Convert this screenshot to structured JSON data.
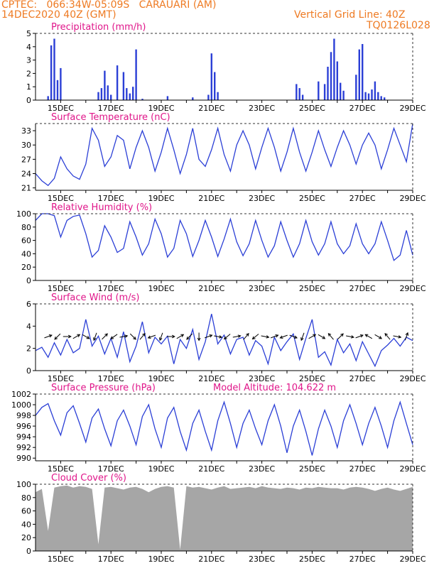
{
  "header": {
    "line1": "CPTEC:   066:34W-05:09S   CARAUARI (AM)",
    "line2": "14DEC2020 40Z (GMT)",
    "grid_note": "Vertical Grid Line: 40Z",
    "model_code": "TQ0126L028"
  },
  "colors": {
    "header": "#ee7a22",
    "panel_title": "#e0168a",
    "series": "#2b3fd6",
    "cloud": "#a6a6a6",
    "grid": "#333333"
  },
  "x_axis": {
    "start": "14DEC2020 00Z",
    "end": "29DEC2020 00Z",
    "tick_labels": [
      "15DEC",
      "17DEC",
      "19DEC",
      "21DEC",
      "23DEC",
      "25DEC",
      "27DEC",
      "29DEC"
    ]
  },
  "chart_data": [
    {
      "id": "precip",
      "type": "bar",
      "title": "Precipitation (mm/h)",
      "ylim": [
        0,
        5
      ],
      "yticks": [
        "0",
        "1",
        "2",
        "3",
        "4",
        "5"
      ],
      "x": [
        "14DEC 12Z",
        "14DEC 15Z",
        "14DEC 18Z",
        "14DEC 21Z",
        "15DEC 00Z",
        "16DEC 12Z",
        "16DEC 15Z",
        "16DEC 18Z",
        "16DEC 21Z",
        "17DEC 00Z",
        "17DEC 06Z",
        "17DEC 12Z",
        "17DEC 15Z",
        "17DEC 18Z",
        "17DEC 21Z",
        "18DEC 00Z",
        "18DEC 06Z",
        "19DEC 06Z",
        "20DEC 06Z",
        "20DEC 21Z",
        "21DEC 00Z",
        "21DEC 03Z",
        "21DEC 06Z",
        "24DEC 09Z",
        "24DEC 12Z",
        "24DEC 15Z",
        "25DEC 06Z",
        "25DEC 12Z",
        "25DEC 15Z",
        "25DEC 18Z",
        "25DEC 21Z",
        "26DEC 00Z",
        "26DEC 03Z",
        "26DEC 06Z",
        "26DEC 18Z",
        "26DEC 21Z",
        "27DEC 00Z",
        "27DEC 03Z",
        "27DEC 06Z",
        "27DEC 09Z",
        "27DEC 12Z",
        "27DEC 15Z",
        "27DEC 18Z",
        "27DEC 21Z"
      ],
      "values": [
        0.3,
        4.1,
        4.6,
        1.5,
        2.4,
        0.6,
        0.9,
        2.2,
        1.1,
        0.4,
        2.6,
        2.1,
        0.9,
        0.5,
        1.0,
        3.8,
        0.1,
        0.3,
        0.2,
        0.4,
        3.5,
        2.1,
        0.6,
        1.2,
        0.9,
        0.4,
        1.4,
        1.2,
        2.5,
        3.6,
        4.6,
        2.9,
        1.3,
        0.7,
        1.9,
        3.8,
        4.2,
        0.6,
        0.5,
        0.8,
        1.4,
        0.6,
        0.3,
        0.2
      ]
    },
    {
      "id": "temp",
      "type": "line",
      "title": "Surface Temperature (nC)",
      "ylim": [
        20.5,
        34.5
      ],
      "yticks": [
        "21",
        "24",
        "27",
        "30",
        "33"
      ],
      "x": [
        "14DEC 00Z",
        "14DEC 06Z",
        "14DEC 12Z",
        "14DEC 18Z",
        "15DEC 00Z",
        "15DEC 06Z",
        "15DEC 12Z",
        "15DEC 18Z",
        "16DEC 00Z",
        "16DEC 06Z",
        "16DEC 12Z",
        "16DEC 18Z",
        "17DEC 00Z",
        "17DEC 06Z",
        "17DEC 12Z",
        "17DEC 18Z",
        "18DEC 00Z",
        "18DEC 06Z",
        "18DEC 12Z",
        "18DEC 18Z",
        "19DEC 00Z",
        "19DEC 06Z",
        "19DEC 12Z",
        "19DEC 18Z",
        "20DEC 00Z",
        "20DEC 06Z",
        "20DEC 12Z",
        "20DEC 18Z",
        "21DEC 00Z",
        "21DEC 06Z",
        "21DEC 12Z",
        "21DEC 18Z",
        "22DEC 00Z",
        "22DEC 06Z",
        "22DEC 12Z",
        "22DEC 18Z",
        "23DEC 00Z",
        "23DEC 06Z",
        "23DEC 12Z",
        "23DEC 18Z",
        "24DEC 00Z",
        "24DEC 06Z",
        "24DEC 12Z",
        "24DEC 18Z",
        "25DEC 00Z",
        "25DEC 06Z",
        "25DEC 12Z",
        "25DEC 18Z",
        "26DEC 00Z",
        "26DEC 06Z",
        "26DEC 12Z",
        "26DEC 18Z",
        "27DEC 00Z",
        "27DEC 06Z",
        "27DEC 12Z",
        "27DEC 18Z",
        "28DEC 00Z",
        "28DEC 06Z",
        "28DEC 12Z",
        "28DEC 18Z",
        "29DEC 00Z"
      ],
      "values": [
        24.0,
        22.5,
        21.5,
        23.0,
        27.5,
        25.0,
        23.5,
        22.8,
        26.0,
        33.5,
        31.0,
        25.5,
        27.5,
        32.0,
        31.0,
        25.0,
        29.5,
        33.0,
        29.5,
        24.5,
        28.5,
        33.5,
        29.0,
        24.0,
        28.0,
        33.5,
        27.0,
        25.5,
        29.0,
        33.5,
        28.0,
        24.5,
        30.0,
        33.0,
        30.0,
        25.0,
        29.5,
        33.5,
        29.5,
        24.5,
        28.5,
        33.5,
        28.5,
        24.5,
        28.5,
        33.0,
        29.0,
        25.5,
        29.5,
        33.0,
        30.0,
        26.0,
        30.0,
        32.5,
        30.0,
        25.0,
        29.0,
        33.5,
        30.0,
        26.5,
        34.5
      ]
    },
    {
      "id": "rh",
      "type": "line",
      "title": "Relative Humidity (%)",
      "ylim": [
        0,
        100
      ],
      "yticks": [
        "0",
        "20",
        "40",
        "60",
        "80",
        "100"
      ],
      "x": [
        "14DEC 00Z",
        "14DEC 06Z",
        "14DEC 12Z",
        "14DEC 18Z",
        "15DEC 00Z",
        "15DEC 06Z",
        "15DEC 12Z",
        "15DEC 18Z",
        "16DEC 00Z",
        "16DEC 06Z",
        "16DEC 12Z",
        "16DEC 18Z",
        "17DEC 00Z",
        "17DEC 06Z",
        "17DEC 12Z",
        "17DEC 18Z",
        "18DEC 00Z",
        "18DEC 06Z",
        "18DEC 12Z",
        "18DEC 18Z",
        "19DEC 00Z",
        "19DEC 06Z",
        "19DEC 12Z",
        "19DEC 18Z",
        "20DEC 00Z",
        "20DEC 06Z",
        "20DEC 12Z",
        "20DEC 18Z",
        "21DEC 00Z",
        "21DEC 06Z",
        "21DEC 12Z",
        "21DEC 18Z",
        "22DEC 00Z",
        "22DEC 06Z",
        "22DEC 12Z",
        "22DEC 18Z",
        "23DEC 00Z",
        "23DEC 06Z",
        "23DEC 12Z",
        "23DEC 18Z",
        "24DEC 00Z",
        "24DEC 06Z",
        "24DEC 12Z",
        "24DEC 18Z",
        "25DEC 00Z",
        "25DEC 06Z",
        "25DEC 12Z",
        "25DEC 18Z",
        "26DEC 00Z",
        "26DEC 06Z",
        "26DEC 12Z",
        "26DEC 18Z",
        "27DEC 00Z",
        "27DEC 06Z",
        "27DEC 12Z",
        "27DEC 18Z",
        "28DEC 00Z",
        "28DEC 06Z",
        "28DEC 12Z",
        "28DEC 18Z",
        "29DEC 00Z"
      ],
      "values": [
        90,
        100,
        100,
        97,
        65,
        90,
        96,
        98,
        70,
        35,
        45,
        82,
        65,
        42,
        48,
        88,
        65,
        38,
        55,
        92,
        70,
        35,
        48,
        90,
        70,
        36,
        60,
        90,
        65,
        36,
        62,
        92,
        58,
        37,
        55,
        90,
        60,
        35,
        52,
        88,
        60,
        35,
        55,
        90,
        58,
        38,
        55,
        88,
        55,
        40,
        52,
        85,
        55,
        40,
        55,
        88,
        60,
        30,
        38,
        75,
        38
      ]
    },
    {
      "id": "wind",
      "type": "line",
      "title": "Surface Wind (m/s)",
      "ylim": [
        0,
        6
      ],
      "yticks": [
        "0",
        "2",
        "4",
        "6"
      ],
      "x": [
        "14DEC 00Z",
        "14DEC 06Z",
        "14DEC 12Z",
        "14DEC 18Z",
        "15DEC 00Z",
        "15DEC 06Z",
        "15DEC 12Z",
        "15DEC 18Z",
        "16DEC 00Z",
        "16DEC 06Z",
        "16DEC 12Z",
        "16DEC 18Z",
        "17DEC 00Z",
        "17DEC 06Z",
        "17DEC 12Z",
        "17DEC 18Z",
        "18DEC 00Z",
        "18DEC 06Z",
        "18DEC 12Z",
        "18DEC 18Z",
        "19DEC 00Z",
        "19DEC 06Z",
        "19DEC 12Z",
        "19DEC 18Z",
        "20DEC 00Z",
        "20DEC 06Z",
        "20DEC 12Z",
        "20DEC 18Z",
        "21DEC 00Z",
        "21DEC 06Z",
        "21DEC 12Z",
        "21DEC 18Z",
        "22DEC 00Z",
        "22DEC 06Z",
        "22DEC 12Z",
        "22DEC 18Z",
        "23DEC 00Z",
        "23DEC 06Z",
        "23DEC 12Z",
        "23DEC 18Z",
        "24DEC 00Z",
        "24DEC 06Z",
        "24DEC 12Z",
        "24DEC 18Z",
        "25DEC 00Z",
        "25DEC 06Z",
        "25DEC 12Z",
        "25DEC 18Z",
        "26DEC 00Z",
        "26DEC 06Z",
        "26DEC 12Z",
        "26DEC 18Z",
        "27DEC 00Z",
        "27DEC 06Z",
        "27DEC 12Z",
        "27DEC 18Z",
        "28DEC 00Z",
        "28DEC 06Z",
        "28DEC 12Z",
        "28DEC 18Z",
        "29DEC 00Z"
      ],
      "values": [
        1.8,
        2.1,
        1.2,
        2.5,
        1.4,
        2.8,
        1.6,
        2.0,
        4.6,
        2.2,
        3.1,
        1.5,
        2.9,
        1.2,
        3.5,
        0.8,
        2.2,
        4.4,
        1.6,
        3.0,
        2.4,
        3.1,
        0.6,
        2.8,
        2.0,
        3.7,
        1.0,
        2.6,
        5.1,
        2.4,
        3.2,
        1.5,
        2.8,
        3.0,
        1.4,
        2.7,
        2.2,
        0.6,
        3.0,
        1.8,
        2.6,
        3.3,
        1.0,
        2.9,
        4.6,
        1.2,
        1.7,
        0.5,
        2.8,
        1.6,
        2.4,
        0.9,
        2.6,
        1.5,
        0.4,
        1.8,
        2.3,
        2.9,
        2.2,
        3.0,
        2.7
      ],
      "barbs": {
        "x": [
          "14DEC 12Z",
          "14DEC 21Z",
          "15DEC 06Z",
          "15DEC 15Z",
          "16DEC 00Z",
          "16DEC 09Z",
          "16DEC 18Z",
          "17DEC 03Z",
          "17DEC 12Z",
          "17DEC 21Z",
          "18DEC 06Z",
          "18DEC 15Z",
          "19DEC 00Z",
          "19DEC 09Z",
          "19DEC 18Z",
          "20DEC 03Z",
          "20DEC 12Z",
          "20DEC 21Z",
          "21DEC 06Z",
          "21DEC 15Z",
          "22DEC 00Z",
          "22DEC 09Z",
          "22DEC 18Z",
          "23DEC 03Z",
          "23DEC 12Z",
          "23DEC 21Z",
          "24DEC 06Z",
          "24DEC 15Z",
          "25DEC 00Z",
          "25DEC 09Z",
          "25DEC 18Z",
          "26DEC 03Z",
          "26DEC 12Z",
          "26DEC 21Z",
          "27DEC 06Z",
          "27DEC 15Z",
          "28DEC 00Z",
          "28DEC 09Z",
          "28DEC 18Z"
        ],
        "direction_deg": [
          70,
          225,
          90,
          60,
          120,
          200,
          45,
          235,
          80,
          135,
          40,
          250,
          200,
          90,
          60,
          225,
          180,
          70,
          100,
          230,
          80,
          40,
          230,
          100,
          70,
          250,
          110,
          200,
          60,
          120,
          320,
          45,
          100,
          70,
          300,
          120,
          320,
          100,
          20
        ]
      }
    },
    {
      "id": "pressure",
      "type": "line",
      "title": "Surface Pressure (hPa)",
      "annotation": "Model Altitude: 104.622 m",
      "ylim": [
        989.5,
        1002
      ],
      "yticks": [
        "990",
        "992",
        "994",
        "996",
        "998",
        "1000",
        "1002"
      ],
      "x": [
        "14DEC 00Z",
        "14DEC 06Z",
        "14DEC 12Z",
        "14DEC 18Z",
        "15DEC 00Z",
        "15DEC 06Z",
        "15DEC 12Z",
        "15DEC 18Z",
        "16DEC 00Z",
        "16DEC 06Z",
        "16DEC 12Z",
        "16DEC 18Z",
        "17DEC 00Z",
        "17DEC 06Z",
        "17DEC 12Z",
        "17DEC 18Z",
        "18DEC 00Z",
        "18DEC 06Z",
        "18DEC 12Z",
        "18DEC 18Z",
        "19DEC 00Z",
        "19DEC 06Z",
        "19DEC 12Z",
        "19DEC 18Z",
        "20DEC 00Z",
        "20DEC 06Z",
        "20DEC 12Z",
        "20DEC 18Z",
        "21DEC 00Z",
        "21DEC 06Z",
        "21DEC 12Z",
        "21DEC 18Z",
        "22DEC 00Z",
        "22DEC 06Z",
        "22DEC 12Z",
        "22DEC 18Z",
        "23DEC 00Z",
        "23DEC 06Z",
        "23DEC 12Z",
        "23DEC 18Z",
        "24DEC 00Z",
        "24DEC 06Z",
        "24DEC 12Z",
        "24DEC 18Z",
        "25DEC 00Z",
        "25DEC 06Z",
        "25DEC 12Z",
        "25DEC 18Z",
        "26DEC 00Z",
        "26DEC 06Z",
        "26DEC 12Z",
        "26DEC 18Z",
        "27DEC 00Z",
        "27DEC 06Z",
        "27DEC 12Z",
        "27DEC 18Z",
        "28DEC 00Z",
        "28DEC 06Z",
        "28DEC 12Z",
        "28DEC 18Z",
        "29DEC 00Z"
      ],
      "values": [
        998.0,
        999.5,
        1000.2,
        997.0,
        994.3,
        998.5,
        999.8,
        996.5,
        993.0,
        997.5,
        999.2,
        995.5,
        992.3,
        997.0,
        999.0,
        996.0,
        992.5,
        997.8,
        1000.0,
        995.5,
        992.0,
        997.5,
        999.5,
        995.0,
        991.5,
        996.5,
        999.0,
        995.0,
        991.5,
        997.0,
        1000.5,
        996.5,
        992.0,
        996.5,
        999.0,
        995.5,
        992.5,
        997.0,
        1000.0,
        996.0,
        991.0,
        996.0,
        999.0,
        995.0,
        990.5,
        995.5,
        999.0,
        996.0,
        992.0,
        997.0,
        1000.0,
        996.5,
        992.5,
        996.5,
        999.5,
        996.0,
        992.0,
        997.0,
        1000.5,
        996.5,
        992.5
      ]
    },
    {
      "id": "cloud",
      "type": "area",
      "title": "Cloud Cover (%)",
      "ylim": [
        0,
        100
      ],
      "yticks": [
        "0",
        "20",
        "40",
        "60",
        "80",
        "100"
      ],
      "x": [
        "14DEC 00Z",
        "14DEC 06Z",
        "14DEC 12Z",
        "14DEC 18Z",
        "15DEC 00Z",
        "15DEC 06Z",
        "15DEC 12Z",
        "15DEC 18Z",
        "16DEC 00Z",
        "16DEC 06Z",
        "16DEC 12Z",
        "16DEC 18Z",
        "17DEC 00Z",
        "17DEC 06Z",
        "17DEC 12Z",
        "17DEC 18Z",
        "18DEC 00Z",
        "18DEC 06Z",
        "18DEC 12Z",
        "18DEC 18Z",
        "19DEC 00Z",
        "19DEC 06Z",
        "19DEC 12Z",
        "19DEC 18Z",
        "20DEC 00Z",
        "20DEC 06Z",
        "20DEC 12Z",
        "20DEC 18Z",
        "21DEC 00Z",
        "21DEC 06Z",
        "21DEC 12Z",
        "21DEC 18Z",
        "22DEC 00Z",
        "22DEC 06Z",
        "22DEC 12Z",
        "22DEC 18Z",
        "23DEC 00Z",
        "23DEC 06Z",
        "23DEC 12Z",
        "23DEC 18Z",
        "24DEC 00Z",
        "24DEC 06Z",
        "24DEC 12Z",
        "24DEC 18Z",
        "25DEC 00Z",
        "25DEC 06Z",
        "25DEC 12Z",
        "25DEC 18Z",
        "26DEC 00Z",
        "26DEC 06Z",
        "26DEC 12Z",
        "26DEC 18Z",
        "27DEC 00Z",
        "27DEC 06Z",
        "27DEC 12Z",
        "27DEC 18Z",
        "28DEC 00Z",
        "28DEC 06Z",
        "28DEC 12Z",
        "28DEC 18Z",
        "29DEC 00Z"
      ],
      "values": [
        88,
        93,
        30,
        95,
        97,
        98,
        95,
        97,
        96,
        93,
        10,
        95,
        96,
        94,
        92,
        95,
        96,
        93,
        88,
        93,
        96,
        97,
        95,
        2,
        97,
        95,
        96,
        94,
        92,
        95,
        97,
        93,
        94,
        95,
        96,
        94,
        97,
        95,
        94,
        93,
        95,
        94,
        92,
        95,
        94,
        96,
        95,
        94,
        94,
        92,
        95,
        96,
        95,
        93,
        90,
        93,
        95,
        92,
        90,
        93,
        96
      ]
    }
  ]
}
